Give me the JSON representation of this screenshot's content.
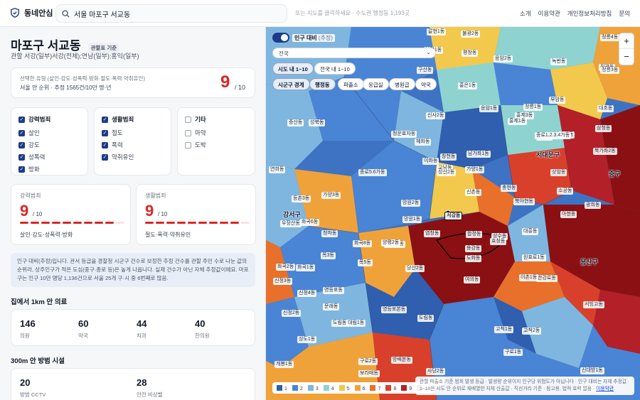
{
  "header": {
    "brand": "동네안심",
    "search_value": "서울 마포구 서교동",
    "hint": "또는 지도를 클릭하세요 · 수도권 행정동 1,193곳",
    "nav": [
      "소개",
      "이용약관",
      "개인정보처리방침",
      "문의"
    ]
  },
  "panel": {
    "title": "마포구 서교동",
    "basis_badge": "관할표 기준",
    "subtitle": "관할 서강(일부)서강(전체);연남(일부);홍익(일부)",
    "rank": {
      "types_line": "선택한 유형 (살인·강도·성폭력·방화·절도·폭력·약취유인)",
      "rank_line": "서울 안 순위 · 추정 1565건/10만 명·년",
      "score": "9",
      "of": "/ 10"
    },
    "filters": [
      {
        "title": "강력범죄",
        "checked": true,
        "items": [
          {
            "label": "살인",
            "checked": true
          },
          {
            "label": "강도",
            "checked": true
          },
          {
            "label": "성폭력",
            "checked": true
          },
          {
            "label": "방화",
            "checked": true
          }
        ]
      },
      {
        "title": "생활범죄",
        "checked": true,
        "items": [
          {
            "label": "절도",
            "checked": true
          },
          {
            "label": "폭력",
            "checked": true
          },
          {
            "label": "약취유인",
            "checked": true
          }
        ]
      },
      {
        "title": "기타",
        "checked": false,
        "items": [
          {
            "label": "마약",
            "checked": false
          },
          {
            "label": "도박",
            "checked": false
          }
        ]
      }
    ],
    "scores": [
      {
        "label": "강력범죄",
        "score": "9",
        "of": "/ 10",
        "level": 9,
        "max": 10,
        "desc": "살인·강도·성폭력·방화"
      },
      {
        "label": "생활범죄",
        "score": "9",
        "of": "/ 10",
        "level": 9,
        "max": 10,
        "desc": "절도·폭력·약취유인"
      }
    ],
    "note": "인구 대비(추정)입니다. 관서 등급을 경찰청 시군구 건수로 보정한 추정 건수를 관할 주민 수로 나눈 값의 순위라, 상주인구가 적은 도심(중구·종로 등)은 높게 나옵니다. 실제 건수가 아닌 자체 추정값이에요. 마포구는 인구 10만 명당 1,136건으로 서울 25개 구·시 중 6번째로 많음.",
    "facilities_title": "집에서 1km 안 의료",
    "facilities": [
      {
        "count": "146",
        "label": "의원"
      },
      {
        "count": "60",
        "label": "약국"
      },
      {
        "count": "44",
        "label": "치과"
      },
      {
        "count": "40",
        "label": "한의원"
      }
    ],
    "safety_title": "300m 안 방범 시설",
    "safety": [
      {
        "count": "20",
        "label": "방범 CCTV"
      },
      {
        "count": "28",
        "label": "안전 비상벨"
      }
    ]
  },
  "map": {
    "toggle_label": "인구 대비",
    "toggle_sub": "(추정)",
    "region_select": "전국",
    "scope_pills": [
      "시도 내 1~10",
      "전국 내 1~10"
    ],
    "layer_pills": [
      "시군구 경계",
      "행정동",
      "파출소",
      "응급실",
      "병원급",
      "약국"
    ],
    "legend": [
      {
        "label": "1",
        "color": "#2f5fae"
      },
      {
        "label": "2",
        "color": "#4a84d4"
      },
      {
        "label": "3",
        "color": "#7fb6df"
      },
      {
        "label": "4",
        "color": "#8fd3d0"
      },
      {
        "label": "5",
        "color": "#f2c94c"
      },
      {
        "label": "6",
        "color": "#f0a23a"
      },
      {
        "label": "7",
        "color": "#e8702a"
      },
      {
        "label": "8",
        "color": "#d9402b"
      },
      {
        "label": "9",
        "color": "#b32028"
      },
      {
        "label": "10",
        "color": "#8a1013"
      }
    ],
    "disclaimer": "관할 파출소 기준 범죄 발생 등급 · 발생량 순위이지 인구당 위험도가 아닙니다 · 인구 대비는 자체 추정값 · 1~10은 시도 안 순위로 재배열한 자체 산출값 · 직선거리 기준 · 참고용, 법적 효력 없음 ·",
    "disclaimer_link": "이용약관",
    "districts": [
      "갈현1동",
      "불광2동",
      "정릉4동",
      "불광1동",
      "평창동",
      "진관동",
      "응암2동",
      "녹번동",
      "정릉3동",
      "구산동",
      "홍은1동",
      "부암동",
      "정릉1동",
      "대조동",
      "성북동",
      "응암1동",
      "홍제3동",
      "삼청동",
      "신사2동",
      "홍제1동",
      "성산동",
      "수색동",
      "증산동",
      "청운효자동",
      "혜화동",
      "종로1.2.3.4가동",
      "북가좌2동",
      "이화동",
      "창천동",
      "남가좌1동",
      "서대문구",
      "교남동",
      "가양1동",
      "상암동",
      "연희동",
      "종로5.6가동",
      "성산2동",
      "신촌동",
      "충현동",
      "중구",
      "등촌3동",
      "가양3동",
      "소공동",
      "광희동",
      "망원2동",
      "북아현동",
      "강서구",
      "망원1동",
      "서강동",
      "아현동",
      "우장산동",
      "화곡6동",
      "염창동",
      "합정동",
      "상수동",
      "대흥동",
      "청파동",
      "화곡8동",
      "화곡본동",
      "용강동",
      "효창동",
      "목3동",
      "양평2동",
      "도화동",
      "원효로1동",
      "화곡2동",
      "화곡1동",
      "당산2동",
      "용산구",
      "목5동",
      "여의동",
      "한강로동",
      "신정3동",
      "신정4동",
      "영등포동",
      "이촌1동",
      "서빙고동",
      "신정2동",
      "문래동",
      "영등포본동",
      "도림동",
      "고척1동",
      "고척2동",
      "도림동",
      "대림1동",
      "상도1동",
      "개봉1동",
      "구로2동",
      "보라매동",
      "사당2동",
      "구로1동",
      "신대방1동",
      "반포본동",
      "방배본동",
      "개봉2동"
    ]
  }
}
